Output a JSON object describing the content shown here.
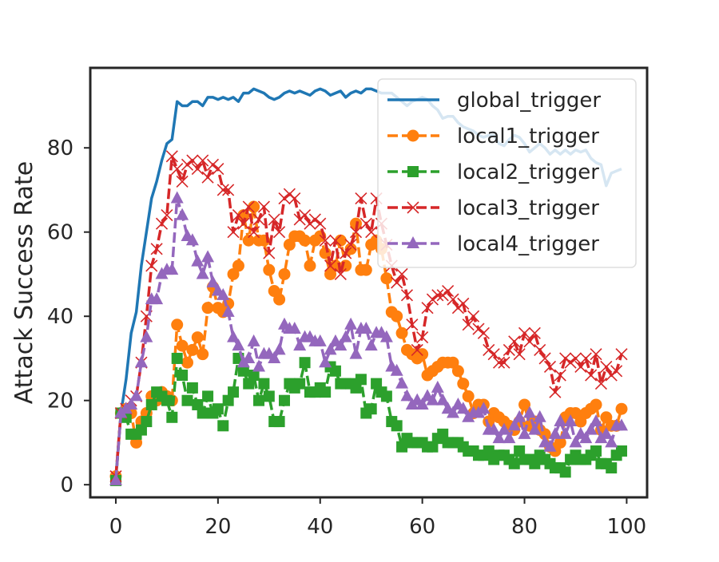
{
  "chart_data": {
    "type": "line",
    "title": "",
    "xlabel": "",
    "ylabel": "Attack Success Rate",
    "xlim": [
      -5,
      104
    ],
    "ylim": [
      -3,
      99
    ],
    "xticks": [
      0,
      20,
      40,
      60,
      80,
      100
    ],
    "yticks": [
      0,
      20,
      40,
      60,
      80
    ],
    "grid": false,
    "legend_position": "top-right",
    "x": [
      0,
      1,
      2,
      3,
      4,
      5,
      6,
      7,
      8,
      9,
      10,
      11,
      12,
      13,
      14,
      15,
      16,
      17,
      18,
      19,
      20,
      21,
      22,
      23,
      24,
      25,
      26,
      27,
      28,
      29,
      30,
      31,
      32,
      33,
      34,
      35,
      36,
      37,
      38,
      39,
      40,
      41,
      42,
      43,
      44,
      45,
      46,
      47,
      48,
      49,
      50,
      51,
      52,
      53,
      54,
      55,
      56,
      57,
      58,
      59,
      60,
      61,
      62,
      63,
      64,
      65,
      66,
      67,
      68,
      69,
      70,
      71,
      72,
      73,
      74,
      75,
      76,
      77,
      78,
      79,
      80,
      81,
      82,
      83,
      84,
      85,
      86,
      87,
      88,
      89,
      90,
      91,
      92,
      93,
      94,
      95,
      96,
      97,
      98,
      99
    ],
    "series": [
      {
        "name": "global_trigger",
        "color": "#1f77b4",
        "marker": "none",
        "linestyle": "solid",
        "values": [
          1.5,
          17,
          25,
          36,
          41,
          52,
          60,
          68,
          72,
          77,
          81,
          82,
          91,
          90,
          90,
          91,
          91,
          90,
          92,
          92,
          91.5,
          92,
          91.5,
          92,
          91,
          93,
          93,
          94,
          93.5,
          93,
          92,
          91.5,
          92,
          93,
          93.5,
          93,
          93.5,
          93,
          92.5,
          93.5,
          94,
          93.5,
          92.5,
          93,
          93.5,
          92,
          93,
          93.5,
          93,
          94,
          94,
          93.5,
          93,
          93,
          93,
          92,
          91,
          90,
          91,
          91.5,
          92,
          91.5,
          90,
          89,
          87,
          87.5,
          87.5,
          86,
          85,
          84.5,
          84,
          83,
          82.5,
          83,
          83,
          81,
          80.5,
          82,
          83,
          82.5,
          81,
          79,
          80,
          81,
          80,
          78.5,
          79.5,
          78.5,
          79.5,
          78.5,
          79.5,
          79,
          79.5,
          77.5,
          76.5,
          76,
          71,
          74,
          74.5,
          75
        ]
      },
      {
        "name": "local1_trigger",
        "color": "#ff7f0e",
        "marker": "circle",
        "linestyle": "dashed",
        "values": [
          2,
          17,
          18,
          17,
          10,
          15,
          17,
          21,
          20,
          22,
          21,
          20,
          38,
          33,
          29,
          32,
          35,
          31,
          42,
          47,
          42,
          41,
          43,
          50,
          52,
          64,
          58,
          66,
          58,
          58,
          51,
          46,
          44,
          50,
          57,
          59,
          59,
          58,
          52,
          58,
          59,
          55,
          50,
          52,
          58,
          52,
          56,
          62,
          51,
          51,
          57,
          58,
          56,
          49,
          41,
          40,
          36,
          32,
          31,
          30,
          31,
          26,
          27,
          28,
          29,
          29,
          29,
          27,
          24,
          21,
          17,
          19,
          19,
          15,
          17,
          16,
          15,
          14,
          13,
          15,
          19,
          14,
          15,
          13,
          12,
          9,
          8,
          10,
          16,
          17,
          17,
          15,
          17,
          18,
          19,
          13,
          16,
          14,
          14,
          18
        ]
      },
      {
        "name": "local2_trigger",
        "color": "#2ca02c",
        "marker": "square",
        "linestyle": "dashed",
        "values": [
          1,
          17,
          16,
          12,
          12,
          13,
          15,
          19,
          22,
          21,
          20,
          16,
          30,
          26,
          20,
          23,
          19,
          17,
          21,
          17,
          18,
          14,
          20,
          22,
          30,
          27,
          24,
          26,
          20,
          24,
          21,
          15,
          15,
          20,
          24,
          23,
          24,
          29,
          22,
          22,
          23,
          22,
          28,
          27,
          24,
          24,
          24,
          23,
          25,
          17,
          18,
          24,
          22,
          21,
          15,
          14,
          9,
          11,
          10,
          10,
          10,
          9,
          9,
          11,
          12,
          10,
          10,
          10,
          9,
          8,
          8,
          7,
          7,
          8,
          6,
          7,
          7,
          6,
          5,
          8,
          6,
          6,
          5,
          7,
          6,
          5,
          4,
          4,
          3,
          6,
          7,
          6,
          6,
          7,
          8,
          5,
          5,
          4,
          7,
          8
        ]
      },
      {
        "name": "local3_trigger",
        "color": "#d62728",
        "marker": "x",
        "linestyle": "dashed",
        "values": [
          2,
          17,
          18,
          20,
          21,
          29,
          40,
          52,
          56,
          62,
          64,
          78,
          75,
          72,
          76,
          77,
          75,
          77,
          73,
          76,
          75,
          70,
          70,
          60,
          64,
          62,
          66,
          60,
          63,
          66,
          55,
          63,
          60,
          68,
          69,
          68,
          63,
          64,
          62,
          63,
          62,
          58,
          52,
          58,
          50,
          55,
          57,
          60,
          68,
          62,
          60,
          68,
          62,
          57,
          52,
          48,
          50,
          45,
          38,
          32,
          35,
          42,
          44,
          45,
          45,
          46,
          44,
          42,
          43,
          38,
          40,
          37,
          36,
          32,
          31,
          29,
          29,
          32,
          34,
          31,
          36,
          34,
          36,
          32,
          30,
          28,
          22,
          26,
          30,
          29,
          30,
          28,
          30,
          26,
          31,
          24,
          28,
          26,
          27,
          31
        ]
      },
      {
        "name": "local4_trigger",
        "color": "#9467bd",
        "marker": "triangle",
        "linestyle": "dashed",
        "values": [
          1,
          17,
          18,
          19,
          21,
          29,
          35,
          44,
          44,
          50,
          51,
          51,
          68,
          64,
          59,
          58,
          53,
          50,
          54,
          48,
          46,
          45,
          41,
          35,
          33,
          29,
          30,
          34,
          28,
          31,
          31,
          30,
          32,
          38,
          37,
          37,
          33,
          35,
          35,
          34,
          34,
          29,
          32,
          34,
          33,
          35,
          38,
          31,
          37,
          37,
          33,
          36,
          36,
          35,
          28,
          27,
          24,
          21,
          19,
          20,
          19,
          21,
          20,
          23,
          20,
          18,
          17,
          19,
          18,
          16,
          17,
          17,
          18,
          13,
          13,
          11,
          13,
          11,
          14,
          16,
          12,
          17,
          13,
          16,
          10,
          9,
          12,
          15,
          12,
          15,
          10,
          12,
          11,
          13,
          15,
          11,
          12,
          10,
          14,
          14
        ]
      }
    ]
  }
}
